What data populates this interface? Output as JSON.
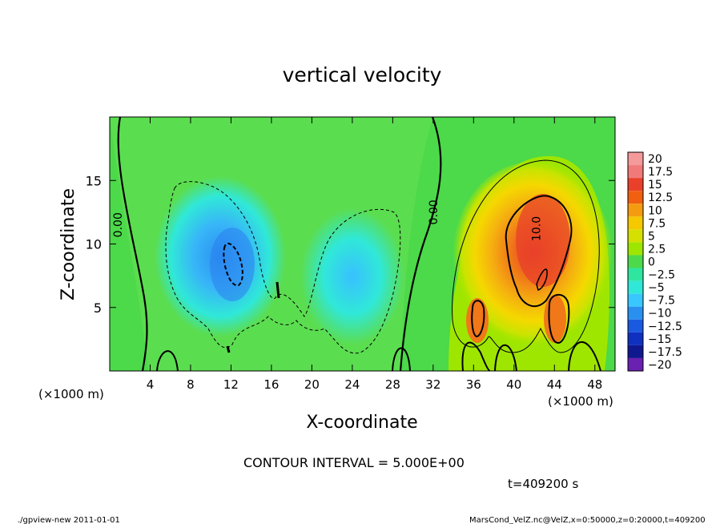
{
  "chart_data": {
    "type": "heatmap",
    "title": "vertical velocity",
    "xlabel": "X-coordinate",
    "ylabel": "Z-coordinate",
    "x_unit_label": "(×1000 m)",
    "y_unit_label": "(×1000 m)",
    "xlim": [
      0,
      50
    ],
    "ylim": [
      0,
      20
    ],
    "x_ticks": [
      4,
      8,
      12,
      16,
      20,
      24,
      28,
      32,
      36,
      40,
      44,
      48
    ],
    "y_ticks": [
      5,
      10,
      15
    ],
    "colorbar": {
      "levels": [
        "20",
        "17.5",
        "15",
        "12.5",
        "10",
        "7.5",
        "5",
        "2.5",
        "0",
        "−2.5",
        "−5",
        "−7.5",
        "−10",
        "−12.5",
        "−15",
        "−17.5",
        "−20"
      ],
      "colors": [
        "#f49a9a",
        "#f07a7a",
        "#e8402a",
        "#f06010",
        "#f59b10",
        "#f5c800",
        "#d6e000",
        "#9ee600",
        "#4cd94a",
        "#2ee6a0",
        "#30e8d8",
        "#38c8ff",
        "#2a90f0",
        "#1a5ae0",
        "#1030c0",
        "#101890",
        "#6a20b0"
      ]
    },
    "contour_labels": [
      {
        "text": "0.00",
        "x": 1.2,
        "y": 11.5
      },
      {
        "text": "0.00",
        "x": 32.4,
        "y": 12.5
      },
      {
        "text": "10.0",
        "x": 42.6,
        "y": 11.2
      }
    ],
    "regions": [
      {
        "name": "downdraft-left",
        "center_x": 11.5,
        "center_z": 8.5,
        "min_value": -10
      },
      {
        "name": "downdraft-right",
        "center_x": 23,
        "center_z": 7,
        "min_value": -7.5
      },
      {
        "name": "updraft",
        "center_x": 42.5,
        "center_z": 9,
        "max_value": 12.5
      }
    ],
    "contour_interval_text": "CONTOUR INTERVAL = 5.000E+00",
    "time_text": "t=409200 s"
  },
  "footer": {
    "left": "./gpview-new  2011-01-01",
    "right": "MarsCond_VelZ.nc@VelZ,x=0:50000,z=0:20000,t=409200"
  }
}
